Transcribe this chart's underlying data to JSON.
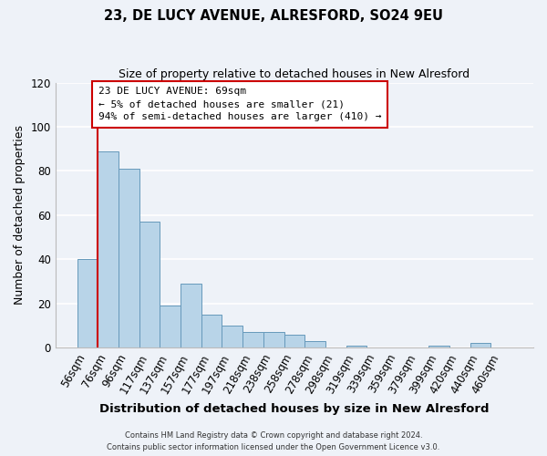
{
  "title_line1": "23, DE LUCY AVENUE, ALRESFORD, SO24 9EU",
  "title_line2": "Size of property relative to detached houses in New Alresford",
  "xlabel": "Distribution of detached houses by size in New Alresford",
  "ylabel": "Number of detached properties",
  "bar_labels": [
    "56sqm",
    "76sqm",
    "96sqm",
    "117sqm",
    "137sqm",
    "157sqm",
    "177sqm",
    "197sqm",
    "218sqm",
    "238sqm",
    "258sqm",
    "278sqm",
    "298sqm",
    "319sqm",
    "339sqm",
    "359sqm",
    "379sqm",
    "399sqm",
    "420sqm",
    "440sqm",
    "460sqm"
  ],
  "bar_values": [
    40,
    89,
    81,
    57,
    19,
    29,
    15,
    10,
    7,
    7,
    6,
    3,
    0,
    1,
    0,
    0,
    0,
    1,
    0,
    2,
    0
  ],
  "bar_color": "#b8d4e8",
  "bar_edge_color": "#6699bb",
  "annotation_title": "23 DE LUCY AVENUE: 69sqm",
  "annotation_line1": "← 5% of detached houses are smaller (21)",
  "annotation_line2": "94% of semi-detached houses are larger (410) →",
  "annotation_box_color": "#ffffff",
  "annotation_box_edge_color": "#cc0000",
  "red_line_color": "#cc0000",
  "ylim": [
    0,
    120
  ],
  "yticks": [
    0,
    20,
    40,
    60,
    80,
    100,
    120
  ],
  "footer_line1": "Contains HM Land Registry data © Crown copyright and database right 2024.",
  "footer_line2": "Contains public sector information licensed under the Open Government Licence v3.0.",
  "background_color": "#eef2f8"
}
